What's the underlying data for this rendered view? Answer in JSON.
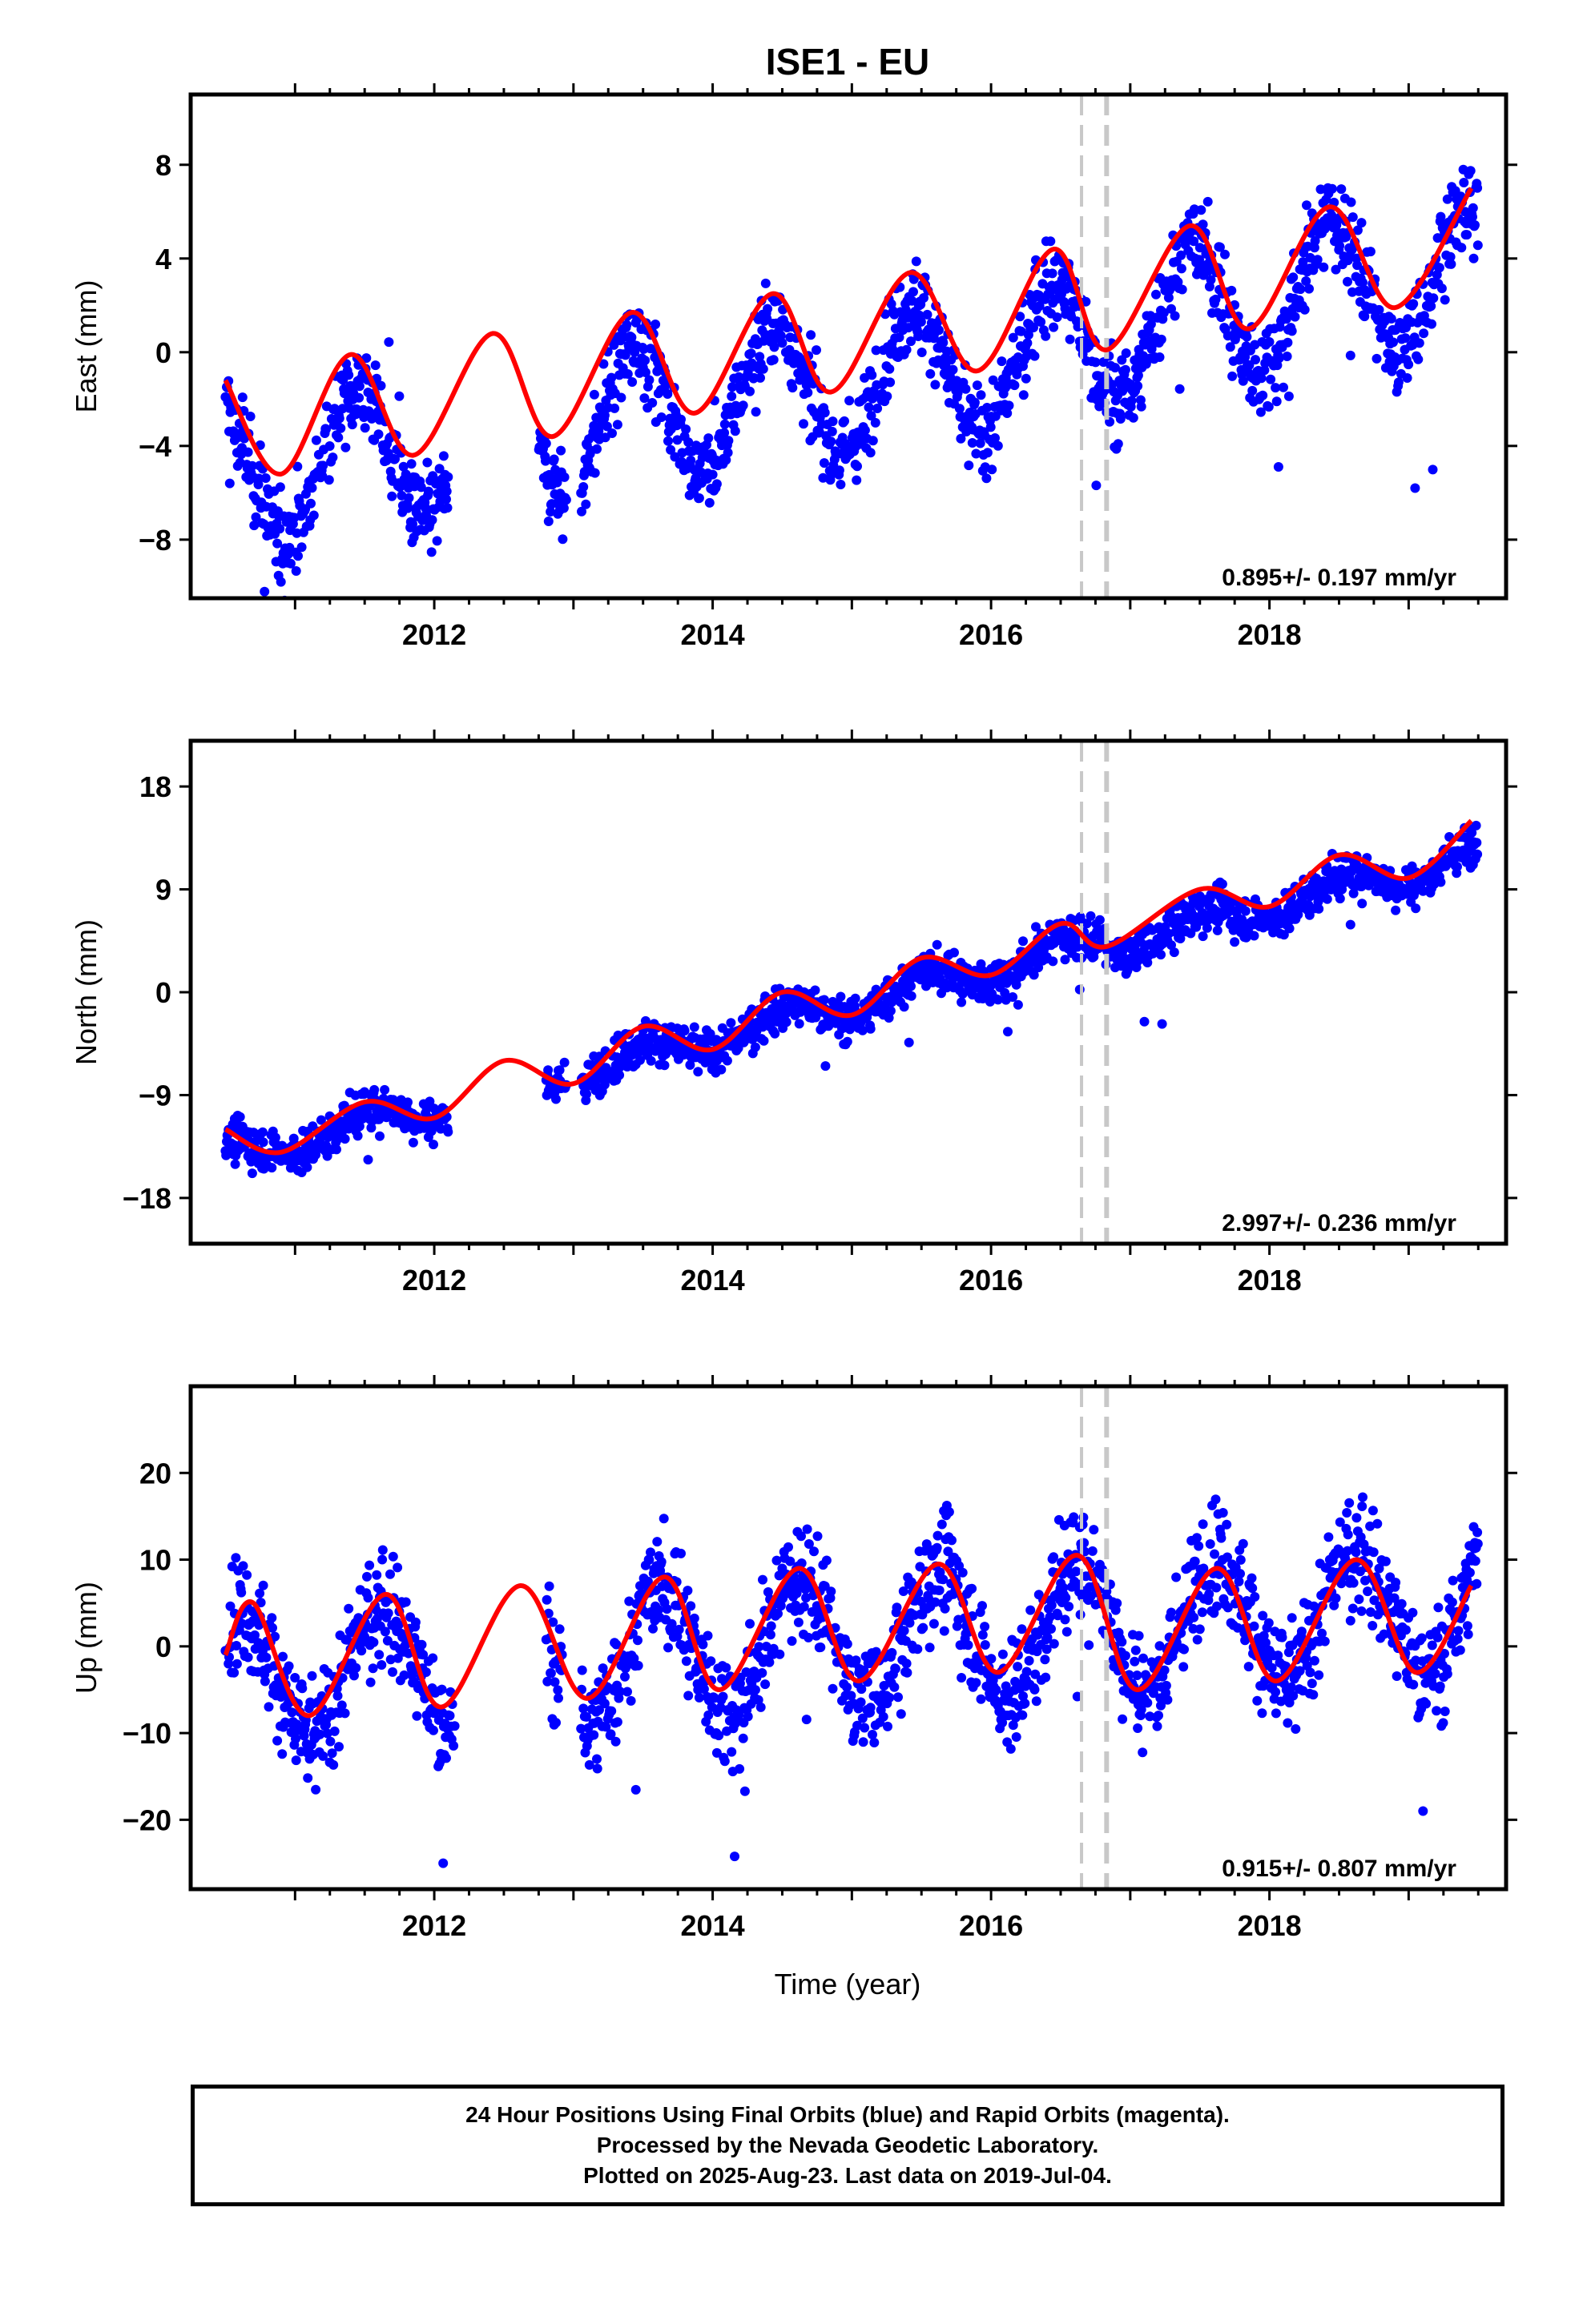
{
  "title": "ISE1 - EU",
  "colors": {
    "final_orbits": "#0000ff",
    "fit": "#ff0000",
    "offset_lines": "#c8c8c8"
  },
  "footer": {
    "line1": "24 Hour Positions Using Final Orbits (blue) and Rapid Orbits (magenta).",
    "line2": "Processed by the Nevada Geodetic Laboratory.",
    "line3": "Plotted on 2025-Aug-23. Last data on 2019-Jul-04."
  },
  "chart_data": [
    {
      "type": "scatter",
      "ylabel": "East (mm)",
      "xlabel": "",
      "xlim": [
        2010.25,
        2019.7
      ],
      "ylim": [
        -10.5,
        11.0
      ],
      "xticks": [
        2012,
        2014,
        2016,
        2018
      ],
      "yticks": [
        -8,
        -4,
        0,
        4,
        8
      ],
      "yticklabels": [
        "−8",
        "−4",
        "0",
        "4",
        "8"
      ],
      "rate_label": "0.895+/- 0.197 mm/yr",
      "offset_lines": [
        2016.65,
        2016.83
      ],
      "model": {
        "rate": 0.895,
        "t0": 2016.0,
        "c0": -0.4,
        "amp": 3.0,
        "phase_peak": 0.44,
        "offsets": [
          [
            2016.83,
            0.8
          ]
        ]
      },
      "fit": {
        "name": "",
        "x": [
          2010.5,
          2010.9,
          2011.4,
          2011.85,
          2012.42,
          2012.85,
          2013.42,
          2013.87,
          2014.43,
          2014.85,
          2015.42,
          2015.9,
          2016.45,
          2016.83,
          2017.43,
          2017.85,
          2018.43,
          2018.9,
          2019.45
        ],
        "y": [
          -1.2,
          -5.2,
          -0.1,
          -4.4,
          0.8,
          -3.6,
          1.7,
          -2.6,
          2.5,
          -1.7,
          3.4,
          -0.8,
          4.4,
          0.1,
          5.4,
          1.0,
          6.2,
          1.9,
          7.0
        ]
      },
      "spread": 1.35,
      "gaps": [
        [
          2012.1,
          2012.75
        ],
        [
          2012.95,
          2013.05
        ]
      ]
    },
    {
      "type": "scatter",
      "ylabel": "North (mm)",
      "xlabel": "",
      "xlim": [
        2010.25,
        2019.7
      ],
      "ylim": [
        -22.0,
        22.0
      ],
      "xticks": [
        2012,
        2014,
        2016,
        2018
      ],
      "yticks": [
        -18,
        -9,
        0,
        9,
        18
      ],
      "yticklabels": [
        "−18",
        "−9",
        "0",
        "9",
        "18"
      ],
      "rate_label": "2.997+/- 0.236 mm/yr",
      "offset_lines": [
        2016.65,
        2016.83
      ],
      "model": {
        "rate": 2.997,
        "t0": 2016.0,
        "c0": 2.0,
        "amp": 1.2,
        "phase_peak": 0.52,
        "offsets": [
          [
            2016.83,
            -0.5
          ]
        ]
      },
      "fit": {
        "name": "",
        "x": [
          2010.5,
          2010.9,
          2011.5,
          2012.0,
          2012.5,
          2013.0,
          2013.5,
          2014.0,
          2014.5,
          2015.0,
          2015.5,
          2016.0,
          2016.5,
          2016.83,
          2017.5,
          2018.0,
          2018.5,
          2019.0,
          2019.45
        ],
        "y": [
          -12.0,
          -14.0,
          -9.6,
          -11.0,
          -6.0,
          -8.0,
          -3.0,
          -5.0,
          0.0,
          -2.0,
          3.0,
          1.5,
          6.0,
          4.0,
          9.0,
          7.5,
          12.0,
          10.0,
          15.0
        ]
      },
      "spread": 1.3,
      "gaps": [
        [
          2012.1,
          2012.8
        ],
        [
          2012.95,
          2013.05
        ]
      ]
    },
    {
      "type": "scatter",
      "ylabel": "Up (mm)",
      "xlabel": "Time (year)",
      "xlim": [
        2010.25,
        2019.7
      ],
      "ylim": [
        -28.0,
        30.0
      ],
      "xticks": [
        2012,
        2014,
        2016,
        2018
      ],
      "yticks": [
        -20,
        -10,
        0,
        10,
        20
      ],
      "yticklabels": [
        "−20",
        "−10",
        "0",
        "10",
        "20"
      ],
      "rate_label": "0.915+/- 0.807 mm/yr",
      "offset_lines": [
        2016.65,
        2016.83
      ],
      "model": {
        "rate": 0.915,
        "t0": 2016.0,
        "c0": 1.5,
        "amp": 7.5,
        "phase_peak": 0.62,
        "offsets": []
      },
      "fit": {
        "name": "",
        "x": [
          2010.5,
          2010.7,
          2011.1,
          2011.65,
          2012.05,
          2012.62,
          2013.1,
          2013.65,
          2014.05,
          2014.62,
          2015.05,
          2015.62,
          2016.05,
          2016.62,
          2017.05,
          2017.62,
          2018.05,
          2018.62,
          2019.05,
          2019.45
        ],
        "y": [
          -1.0,
          5.0,
          -8.0,
          6.0,
          -7.0,
          7.0,
          -6.0,
          8.0,
          -5.0,
          9.0,
          -4.0,
          9.5,
          -3.0,
          10.5,
          -5.0,
          9.0,
          -4.0,
          10.0,
          -3.0,
          7.0
        ]
      },
      "spread": 4.5,
      "gaps": [
        [
          2012.15,
          2012.8
        ],
        [
          2012.92,
          2013.05
        ]
      ]
    }
  ]
}
